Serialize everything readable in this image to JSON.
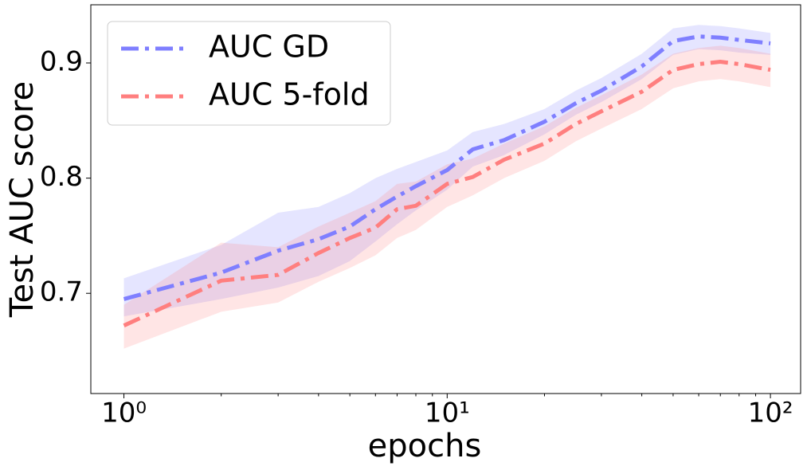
{
  "chart_data": {
    "type": "line",
    "x_label": "epochs",
    "y_label": "Test AUC score",
    "x": [
      1,
      2,
      3,
      4,
      5,
      6,
      7,
      8,
      10,
      12,
      15,
      20,
      25,
      30,
      40,
      50,
      60,
      70,
      80,
      100
    ],
    "series": [
      {
        "name": "AUC GD",
        "color": "#7f7fff",
        "values": [
          0.695,
          0.718,
          0.737,
          0.747,
          0.758,
          0.773,
          0.784,
          0.793,
          0.807,
          0.825,
          0.833,
          0.849,
          0.865,
          0.876,
          0.897,
          0.919,
          0.923,
          0.922,
          0.92,
          0.917
        ],
        "lower": [
          0.68,
          0.695,
          0.705,
          0.715,
          0.728,
          0.745,
          0.76,
          0.772,
          0.79,
          0.81,
          0.82,
          0.838,
          0.855,
          0.866,
          0.886,
          0.907,
          0.912,
          0.911,
          0.909,
          0.907
        ],
        "upper": [
          0.713,
          0.742,
          0.77,
          0.775,
          0.787,
          0.8,
          0.808,
          0.814,
          0.824,
          0.84,
          0.847,
          0.86,
          0.876,
          0.887,
          0.908,
          0.93,
          0.933,
          0.932,
          0.93,
          0.926
        ]
      },
      {
        "name": "AUC 5-fold",
        "color": "#ff7f7f",
        "values": [
          0.672,
          0.711,
          0.716,
          0.735,
          0.748,
          0.757,
          0.773,
          0.776,
          0.795,
          0.801,
          0.816,
          0.83,
          0.847,
          0.858,
          0.875,
          0.894,
          0.899,
          0.901,
          0.899,
          0.894
        ],
        "lower": [
          0.652,
          0.684,
          0.692,
          0.71,
          0.722,
          0.733,
          0.748,
          0.755,
          0.775,
          0.785,
          0.8,
          0.815,
          0.832,
          0.843,
          0.86,
          0.878,
          0.884,
          0.886,
          0.884,
          0.879
        ],
        "upper": [
          0.69,
          0.744,
          0.74,
          0.758,
          0.77,
          0.78,
          0.795,
          0.797,
          0.812,
          0.817,
          0.83,
          0.845,
          0.861,
          0.872,
          0.89,
          0.908,
          0.913,
          0.915,
          0.913,
          0.908
        ]
      }
    ],
    "xscale": "log",
    "xlim": [
      0.79,
      124
    ],
    "ylim": [
      0.613,
      0.9505
    ],
    "xticks": [
      {
        "value": 1,
        "label": "10⁰"
      },
      {
        "value": 10,
        "label": "10¹"
      },
      {
        "value": 100,
        "label": "10²"
      }
    ],
    "xminorticks": [
      2,
      3,
      4,
      5,
      6,
      7,
      8,
      9,
      20,
      30,
      40,
      50,
      60,
      70,
      80,
      90
    ],
    "yticks": [
      0.7,
      0.8,
      0.9
    ],
    "legend": "upper-left",
    "line_style": "dashdot",
    "band_opacity": 0.2
  }
}
